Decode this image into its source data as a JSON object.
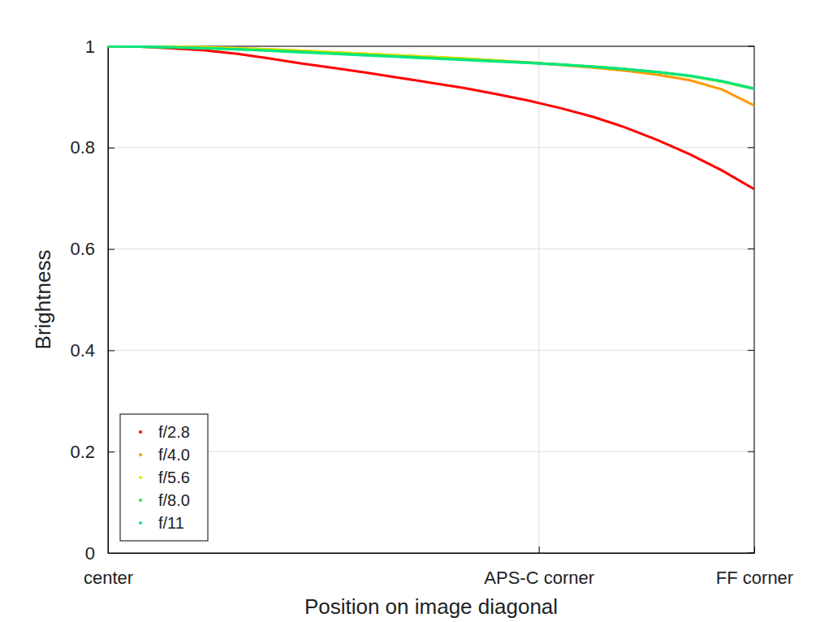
{
  "chart_data": {
    "type": "line",
    "x_label": "Position on image diagonal",
    "y_label": "Brightness",
    "x": [
      0,
      0.05,
      0.1,
      0.15,
      0.2,
      0.25,
      0.3,
      0.35,
      0.4,
      0.45,
      0.5,
      0.55,
      0.6,
      0.65,
      0.7,
      0.75,
      0.8,
      0.85,
      0.9,
      0.95,
      1.0
    ],
    "series": [
      {
        "name": "f/2.8",
        "color": "#ff0000",
        "values": [
          1.0,
          0.999,
          0.996,
          0.992,
          0.985,
          0.976,
          0.966,
          0.957,
          0.948,
          0.938,
          0.928,
          0.918,
          0.906,
          0.893,
          0.878,
          0.861,
          0.84,
          0.815,
          0.787,
          0.755,
          0.718
        ]
      },
      {
        "name": "f/4.0",
        "color": "#ff9900",
        "values": [
          1.0,
          1.0,
          0.999,
          0.998,
          0.996,
          0.994,
          0.991,
          0.988,
          0.985,
          0.982,
          0.979,
          0.976,
          0.972,
          0.968,
          0.963,
          0.958,
          0.952,
          0.944,
          0.933,
          0.915,
          0.883
        ]
      },
      {
        "name": "f/5.6",
        "color": "#e6e600",
        "values": [
          1.0,
          1.0,
          0.999,
          0.998,
          0.996,
          0.994,
          0.991,
          0.988,
          0.985,
          0.982,
          0.979,
          0.976,
          0.972,
          0.968,
          0.964,
          0.96,
          0.955,
          0.949,
          0.941,
          0.93,
          0.916
        ]
      },
      {
        "name": "f/8.0",
        "color": "#33dd33",
        "values": [
          1.0,
          0.999,
          0.998,
          0.996,
          0.994,
          0.992,
          0.989,
          0.986,
          0.983,
          0.98,
          0.977,
          0.974,
          0.971,
          0.968,
          0.964,
          0.96,
          0.955,
          0.949,
          0.942,
          0.931,
          0.917
        ]
      },
      {
        "name": "f/11",
        "color": "#00e680",
        "values": [
          1.0,
          0.999,
          0.998,
          0.996,
          0.994,
          0.991,
          0.988,
          0.985,
          0.982,
          0.979,
          0.976,
          0.973,
          0.97,
          0.967,
          0.964,
          0.96,
          0.955,
          0.949,
          0.942,
          0.931,
          0.916
        ]
      }
    ],
    "xlim": [
      0,
      1
    ],
    "xticks": [
      {
        "value": 0,
        "label": "center"
      },
      {
        "value": 0.6667,
        "label": "APS-C corner"
      },
      {
        "value": 1,
        "label": "FF corner"
      }
    ],
    "ylim": [
      0,
      1
    ],
    "yticks": [
      0,
      0.2,
      0.4,
      0.6,
      0.8,
      1
    ],
    "grid": true,
    "legend": "lower left"
  }
}
